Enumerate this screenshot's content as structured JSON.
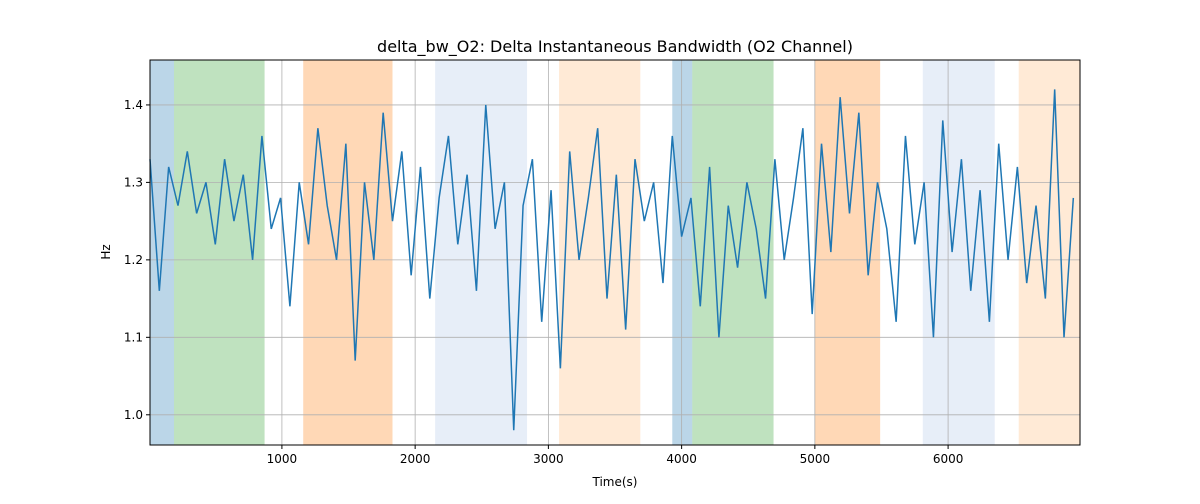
{
  "chart_data": {
    "type": "line",
    "title": "delta_bw_O2: Delta Instantaneous Bandwidth (O2 Channel)",
    "xlabel": "Time(s)",
    "ylabel": "Hz",
    "x": [
      10,
      80,
      150,
      220,
      290,
      360,
      430,
      500,
      570,
      640,
      710,
      780,
      850,
      920,
      990,
      1060,
      1130,
      1200,
      1270,
      1340,
      1410,
      1480,
      1550,
      1620,
      1690,
      1760,
      1830,
      1900,
      1970,
      2040,
      2110,
      2180,
      2250,
      2320,
      2390,
      2460,
      2530,
      2600,
      2670,
      2740,
      2810,
      2880,
      2950,
      3020,
      3090,
      3160,
      3230,
      3300,
      3370,
      3440,
      3510,
      3580,
      3650,
      3720,
      3790,
      3860,
      3930,
      4000,
      4070,
      4140,
      4210,
      4280,
      4350,
      4420,
      4490,
      4560,
      4630,
      4700,
      4770,
      4840,
      4910,
      4980,
      5050,
      5120,
      5190,
      5260,
      5330,
      5400,
      5470,
      5540,
      5610,
      5680,
      5750,
      5820,
      5890,
      5960,
      6030,
      6100,
      6170,
      6240,
      6310,
      6380,
      6450,
      6520,
      6590,
      6660,
      6730,
      6800,
      6870,
      6940
    ],
    "series": [
      {
        "color": "#1f77b4",
        "values": [
          1.33,
          1.16,
          1.32,
          1.27,
          1.34,
          1.26,
          1.3,
          1.22,
          1.33,
          1.25,
          1.31,
          1.2,
          1.36,
          1.24,
          1.28,
          1.14,
          1.3,
          1.22,
          1.37,
          1.27,
          1.2,
          1.35,
          1.07,
          1.3,
          1.2,
          1.39,
          1.25,
          1.34,
          1.18,
          1.32,
          1.15,
          1.28,
          1.36,
          1.22,
          1.31,
          1.16,
          1.4,
          1.24,
          1.3,
          0.98,
          1.27,
          1.33,
          1.12,
          1.29,
          1.06,
          1.34,
          1.2,
          1.28,
          1.37,
          1.15,
          1.31,
          1.11,
          1.33,
          1.25,
          1.3,
          1.17,
          1.36,
          1.23,
          1.28,
          1.14,
          1.32,
          1.1,
          1.27,
          1.19,
          1.3,
          1.24,
          1.15,
          1.33,
          1.2,
          1.28,
          1.37,
          1.13,
          1.35,
          1.21,
          1.41,
          1.26,
          1.39,
          1.18,
          1.3,
          1.24,
          1.12,
          1.36,
          1.22,
          1.3,
          1.1,
          1.38,
          1.21,
          1.33,
          1.16,
          1.29,
          1.12,
          1.35,
          1.2,
          1.32,
          1.17,
          1.27,
          1.15,
          1.42,
          1.1,
          1.28
        ]
      }
    ],
    "spans": [
      {
        "start": 10,
        "end": 190,
        "color": "#1f77b4",
        "opacity": 0.3
      },
      {
        "start": 190,
        "end": 870,
        "color": "#2ca02c",
        "opacity": 0.3
      },
      {
        "start": 1160,
        "end": 1830,
        "color": "#ff7f0e",
        "opacity": 0.3
      },
      {
        "start": 2150,
        "end": 2840,
        "color": "#aec7e8",
        "opacity": 0.3
      },
      {
        "start": 3080,
        "end": 3690,
        "color": "#ffbb78",
        "opacity": 0.3
      },
      {
        "start": 3930,
        "end": 4080,
        "color": "#1f77b4",
        "opacity": 0.3
      },
      {
        "start": 4080,
        "end": 4690,
        "color": "#2ca02c",
        "opacity": 0.3
      },
      {
        "start": 5000,
        "end": 5490,
        "color": "#ff7f0e",
        "opacity": 0.3
      },
      {
        "start": 5810,
        "end": 6350,
        "color": "#aec7e8",
        "opacity": 0.3
      },
      {
        "start": 6530,
        "end": 6990,
        "color": "#ffbb78",
        "opacity": 0.3
      }
    ],
    "xlim": [
      10,
      6990
    ],
    "ylim": [
      0.961,
      1.458
    ],
    "xticks": [
      1000,
      2000,
      3000,
      4000,
      5000,
      6000
    ],
    "yticks": [
      {
        "value": 1,
        "label": "1.0"
      },
      1.1,
      1.2,
      1.3,
      1.4
    ],
    "grid": true
  }
}
